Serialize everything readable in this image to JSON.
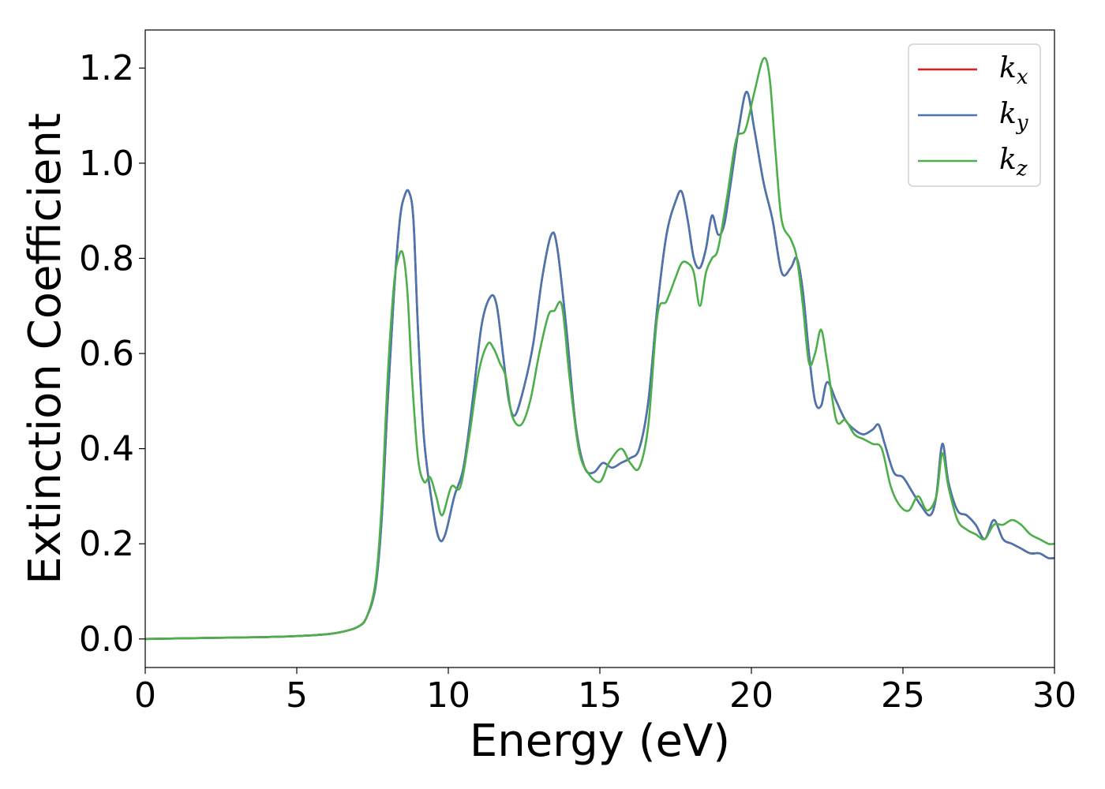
{
  "chart_data": {
    "type": "line",
    "title": "",
    "xlabel": "Energy (eV)",
    "ylabel": "Extinction Coefficient",
    "xlim": [
      0,
      30
    ],
    "ylim": [
      -0.06,
      1.28
    ],
    "xticks": [
      "0",
      "5",
      "10",
      "15",
      "20",
      "25",
      "30"
    ],
    "yticks": [
      "0.0",
      "0.2",
      "0.4",
      "0.6",
      "0.8",
      "1.0",
      "1.2"
    ],
    "grid": false,
    "legend_position": "top-right",
    "series": [
      {
        "name": "k_x",
        "legend": {
          "base": "k",
          "sub": "x"
        },
        "color": "#e41a1c",
        "x": [
          0,
          1,
          2,
          3,
          4,
          5,
          6,
          6.5,
          7,
          7.3,
          7.6,
          7.8,
          8.0,
          8.2,
          8.4,
          8.55,
          8.7,
          8.85,
          9.0,
          9.2,
          9.5,
          9.7,
          9.9,
          10.2,
          10.5,
          10.8,
          11.1,
          11.4,
          11.6,
          11.8,
          12.0,
          12.2,
          12.5,
          12.8,
          13.1,
          13.4,
          13.6,
          13.9,
          14.2,
          14.5,
          14.8,
          15.1,
          15.4,
          15.7,
          16.0,
          16.3,
          16.6,
          16.9,
          17.2,
          17.5,
          17.7,
          17.9,
          18.1,
          18.3,
          18.5,
          18.7,
          18.9,
          19.1,
          19.3,
          19.6,
          19.85,
          20.1,
          20.4,
          20.7,
          21.0,
          21.3,
          21.5,
          21.7,
          21.9,
          22.1,
          22.3,
          22.5,
          22.8,
          23.1,
          23.4,
          23.7,
          24.0,
          24.2,
          24.4,
          24.7,
          25.0,
          25.3,
          25.6,
          25.9,
          26.1,
          26.3,
          26.5,
          26.8,
          27.1,
          27.4,
          27.7,
          28.0,
          28.3,
          28.6,
          28.9,
          29.2,
          29.5,
          29.8,
          30
        ],
        "y": [
          0.0,
          0.001,
          0.002,
          0.003,
          0.004,
          0.006,
          0.01,
          0.015,
          0.025,
          0.045,
          0.11,
          0.25,
          0.5,
          0.72,
          0.88,
          0.93,
          0.94,
          0.88,
          0.65,
          0.42,
          0.27,
          0.21,
          0.22,
          0.3,
          0.36,
          0.5,
          0.66,
          0.72,
          0.7,
          0.6,
          0.5,
          0.47,
          0.53,
          0.62,
          0.76,
          0.85,
          0.82,
          0.65,
          0.45,
          0.36,
          0.35,
          0.37,
          0.36,
          0.37,
          0.38,
          0.4,
          0.5,
          0.7,
          0.85,
          0.92,
          0.94,
          0.88,
          0.8,
          0.78,
          0.82,
          0.89,
          0.85,
          0.87,
          0.95,
          1.08,
          1.15,
          1.07,
          0.96,
          0.88,
          0.77,
          0.78,
          0.8,
          0.73,
          0.6,
          0.5,
          0.49,
          0.54,
          0.5,
          0.46,
          0.44,
          0.43,
          0.44,
          0.45,
          0.41,
          0.35,
          0.34,
          0.31,
          0.28,
          0.26,
          0.3,
          0.41,
          0.33,
          0.27,
          0.26,
          0.24,
          0.21,
          0.25,
          0.21,
          0.2,
          0.19,
          0.18,
          0.18,
          0.17,
          0.17
        ]
      },
      {
        "name": "k_y",
        "legend": {
          "base": "k",
          "sub": "y"
        },
        "color": "#4876b0",
        "x": [
          0,
          1,
          2,
          3,
          4,
          5,
          6,
          6.5,
          7,
          7.3,
          7.6,
          7.8,
          8.0,
          8.2,
          8.4,
          8.55,
          8.7,
          8.85,
          9.0,
          9.2,
          9.5,
          9.7,
          9.9,
          10.2,
          10.5,
          10.8,
          11.1,
          11.4,
          11.6,
          11.8,
          12.0,
          12.2,
          12.5,
          12.8,
          13.1,
          13.4,
          13.6,
          13.9,
          14.2,
          14.5,
          14.8,
          15.1,
          15.4,
          15.7,
          16.0,
          16.3,
          16.6,
          16.9,
          17.2,
          17.5,
          17.7,
          17.9,
          18.1,
          18.3,
          18.5,
          18.7,
          18.9,
          19.1,
          19.3,
          19.6,
          19.85,
          20.1,
          20.4,
          20.7,
          21.0,
          21.3,
          21.5,
          21.7,
          21.9,
          22.1,
          22.3,
          22.5,
          22.8,
          23.1,
          23.4,
          23.7,
          24.0,
          24.2,
          24.4,
          24.7,
          25.0,
          25.3,
          25.6,
          25.9,
          26.1,
          26.3,
          26.5,
          26.8,
          27.1,
          27.4,
          27.7,
          28.0,
          28.3,
          28.6,
          28.9,
          29.2,
          29.5,
          29.8,
          30
        ],
        "y": [
          0.0,
          0.001,
          0.002,
          0.003,
          0.004,
          0.006,
          0.01,
          0.015,
          0.025,
          0.045,
          0.11,
          0.25,
          0.5,
          0.72,
          0.88,
          0.93,
          0.94,
          0.88,
          0.65,
          0.42,
          0.27,
          0.21,
          0.22,
          0.3,
          0.36,
          0.5,
          0.66,
          0.72,
          0.7,
          0.6,
          0.5,
          0.47,
          0.53,
          0.62,
          0.76,
          0.85,
          0.82,
          0.65,
          0.45,
          0.36,
          0.35,
          0.37,
          0.36,
          0.37,
          0.38,
          0.4,
          0.5,
          0.7,
          0.85,
          0.92,
          0.94,
          0.88,
          0.8,
          0.78,
          0.82,
          0.89,
          0.85,
          0.87,
          0.95,
          1.08,
          1.15,
          1.07,
          0.96,
          0.88,
          0.77,
          0.78,
          0.8,
          0.73,
          0.6,
          0.5,
          0.49,
          0.54,
          0.5,
          0.46,
          0.44,
          0.43,
          0.44,
          0.45,
          0.41,
          0.35,
          0.34,
          0.31,
          0.28,
          0.26,
          0.3,
          0.41,
          0.33,
          0.27,
          0.26,
          0.24,
          0.21,
          0.25,
          0.21,
          0.2,
          0.19,
          0.18,
          0.18,
          0.17,
          0.17
        ]
      },
      {
        "name": "k_z",
        "legend": {
          "base": "k",
          "sub": "z"
        },
        "color": "#4daf4a",
        "x": [
          0,
          1,
          2,
          3,
          4,
          5,
          6,
          6.5,
          7,
          7.3,
          7.6,
          7.8,
          8.0,
          8.2,
          8.35,
          8.5,
          8.65,
          8.8,
          9.0,
          9.2,
          9.4,
          9.6,
          9.8,
          10.1,
          10.4,
          10.7,
          11.0,
          11.3,
          11.5,
          11.7,
          11.9,
          12.1,
          12.4,
          12.7,
          13.0,
          13.3,
          13.5,
          13.75,
          14.0,
          14.3,
          14.6,
          15.0,
          15.3,
          15.7,
          16.0,
          16.3,
          16.6,
          16.9,
          17.2,
          17.5,
          17.7,
          17.9,
          18.1,
          18.3,
          18.5,
          18.7,
          18.9,
          19.2,
          19.5,
          19.8,
          20.1,
          20.4,
          20.6,
          20.8,
          21.0,
          21.3,
          21.5,
          21.7,
          21.9,
          22.1,
          22.3,
          22.5,
          22.8,
          23.1,
          23.4,
          23.7,
          24.0,
          24.3,
          24.6,
          24.9,
          25.2,
          25.5,
          25.8,
          26.1,
          26.3,
          26.5,
          26.8,
          27.1,
          27.4,
          27.7,
          28.0,
          28.3,
          28.6,
          28.9,
          29.2,
          29.5,
          29.8,
          30
        ],
        "y": [
          0.0,
          0.001,
          0.002,
          0.003,
          0.004,
          0.006,
          0.01,
          0.015,
          0.025,
          0.045,
          0.12,
          0.28,
          0.55,
          0.74,
          0.8,
          0.81,
          0.73,
          0.55,
          0.38,
          0.33,
          0.34,
          0.3,
          0.26,
          0.32,
          0.32,
          0.43,
          0.56,
          0.62,
          0.61,
          0.58,
          0.55,
          0.47,
          0.45,
          0.5,
          0.6,
          0.68,
          0.69,
          0.7,
          0.55,
          0.4,
          0.35,
          0.33,
          0.37,
          0.4,
          0.37,
          0.36,
          0.45,
          0.68,
          0.71,
          0.76,
          0.79,
          0.79,
          0.77,
          0.7,
          0.77,
          0.8,
          0.82,
          0.93,
          1.05,
          1.07,
          1.15,
          1.22,
          1.18,
          1.02,
          0.88,
          0.84,
          0.8,
          0.7,
          0.58,
          0.6,
          0.65,
          0.58,
          0.46,
          0.46,
          0.43,
          0.42,
          0.41,
          0.4,
          0.32,
          0.28,
          0.27,
          0.3,
          0.27,
          0.3,
          0.39,
          0.32,
          0.25,
          0.23,
          0.22,
          0.21,
          0.24,
          0.24,
          0.25,
          0.24,
          0.22,
          0.21,
          0.2,
          0.2
        ]
      }
    ]
  }
}
